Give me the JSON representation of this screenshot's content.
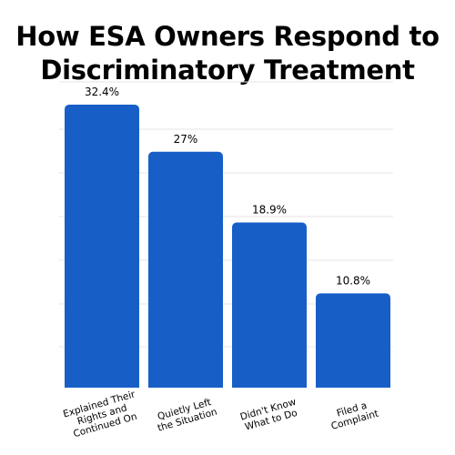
{
  "title_lines": [
    "How ESA Owners Respond to",
    "Discriminatory Treatment"
  ],
  "colors": {
    "bar": "#175FC7",
    "grid": "#E6E6E6",
    "text": "#000000"
  },
  "chart_data": {
    "type": "bar",
    "title": "How ESA Owners Respond to Discriminatory Treatment",
    "categories": [
      [
        "Explained Their",
        "Rights and",
        "Continued On"
      ],
      [
        "Quietly Left",
        "the Situation"
      ],
      [
        "Didn't Know",
        "What to Do"
      ],
      [
        "Filed a",
        "Complaint"
      ]
    ],
    "values": [
      32.4,
      27,
      18.9,
      10.8
    ],
    "data_labels": [
      "32.4%",
      "27%",
      "18.9%",
      "10.8%"
    ],
    "ylim": [
      0,
      35
    ],
    "grid": true,
    "xlabel": "",
    "ylabel": ""
  }
}
